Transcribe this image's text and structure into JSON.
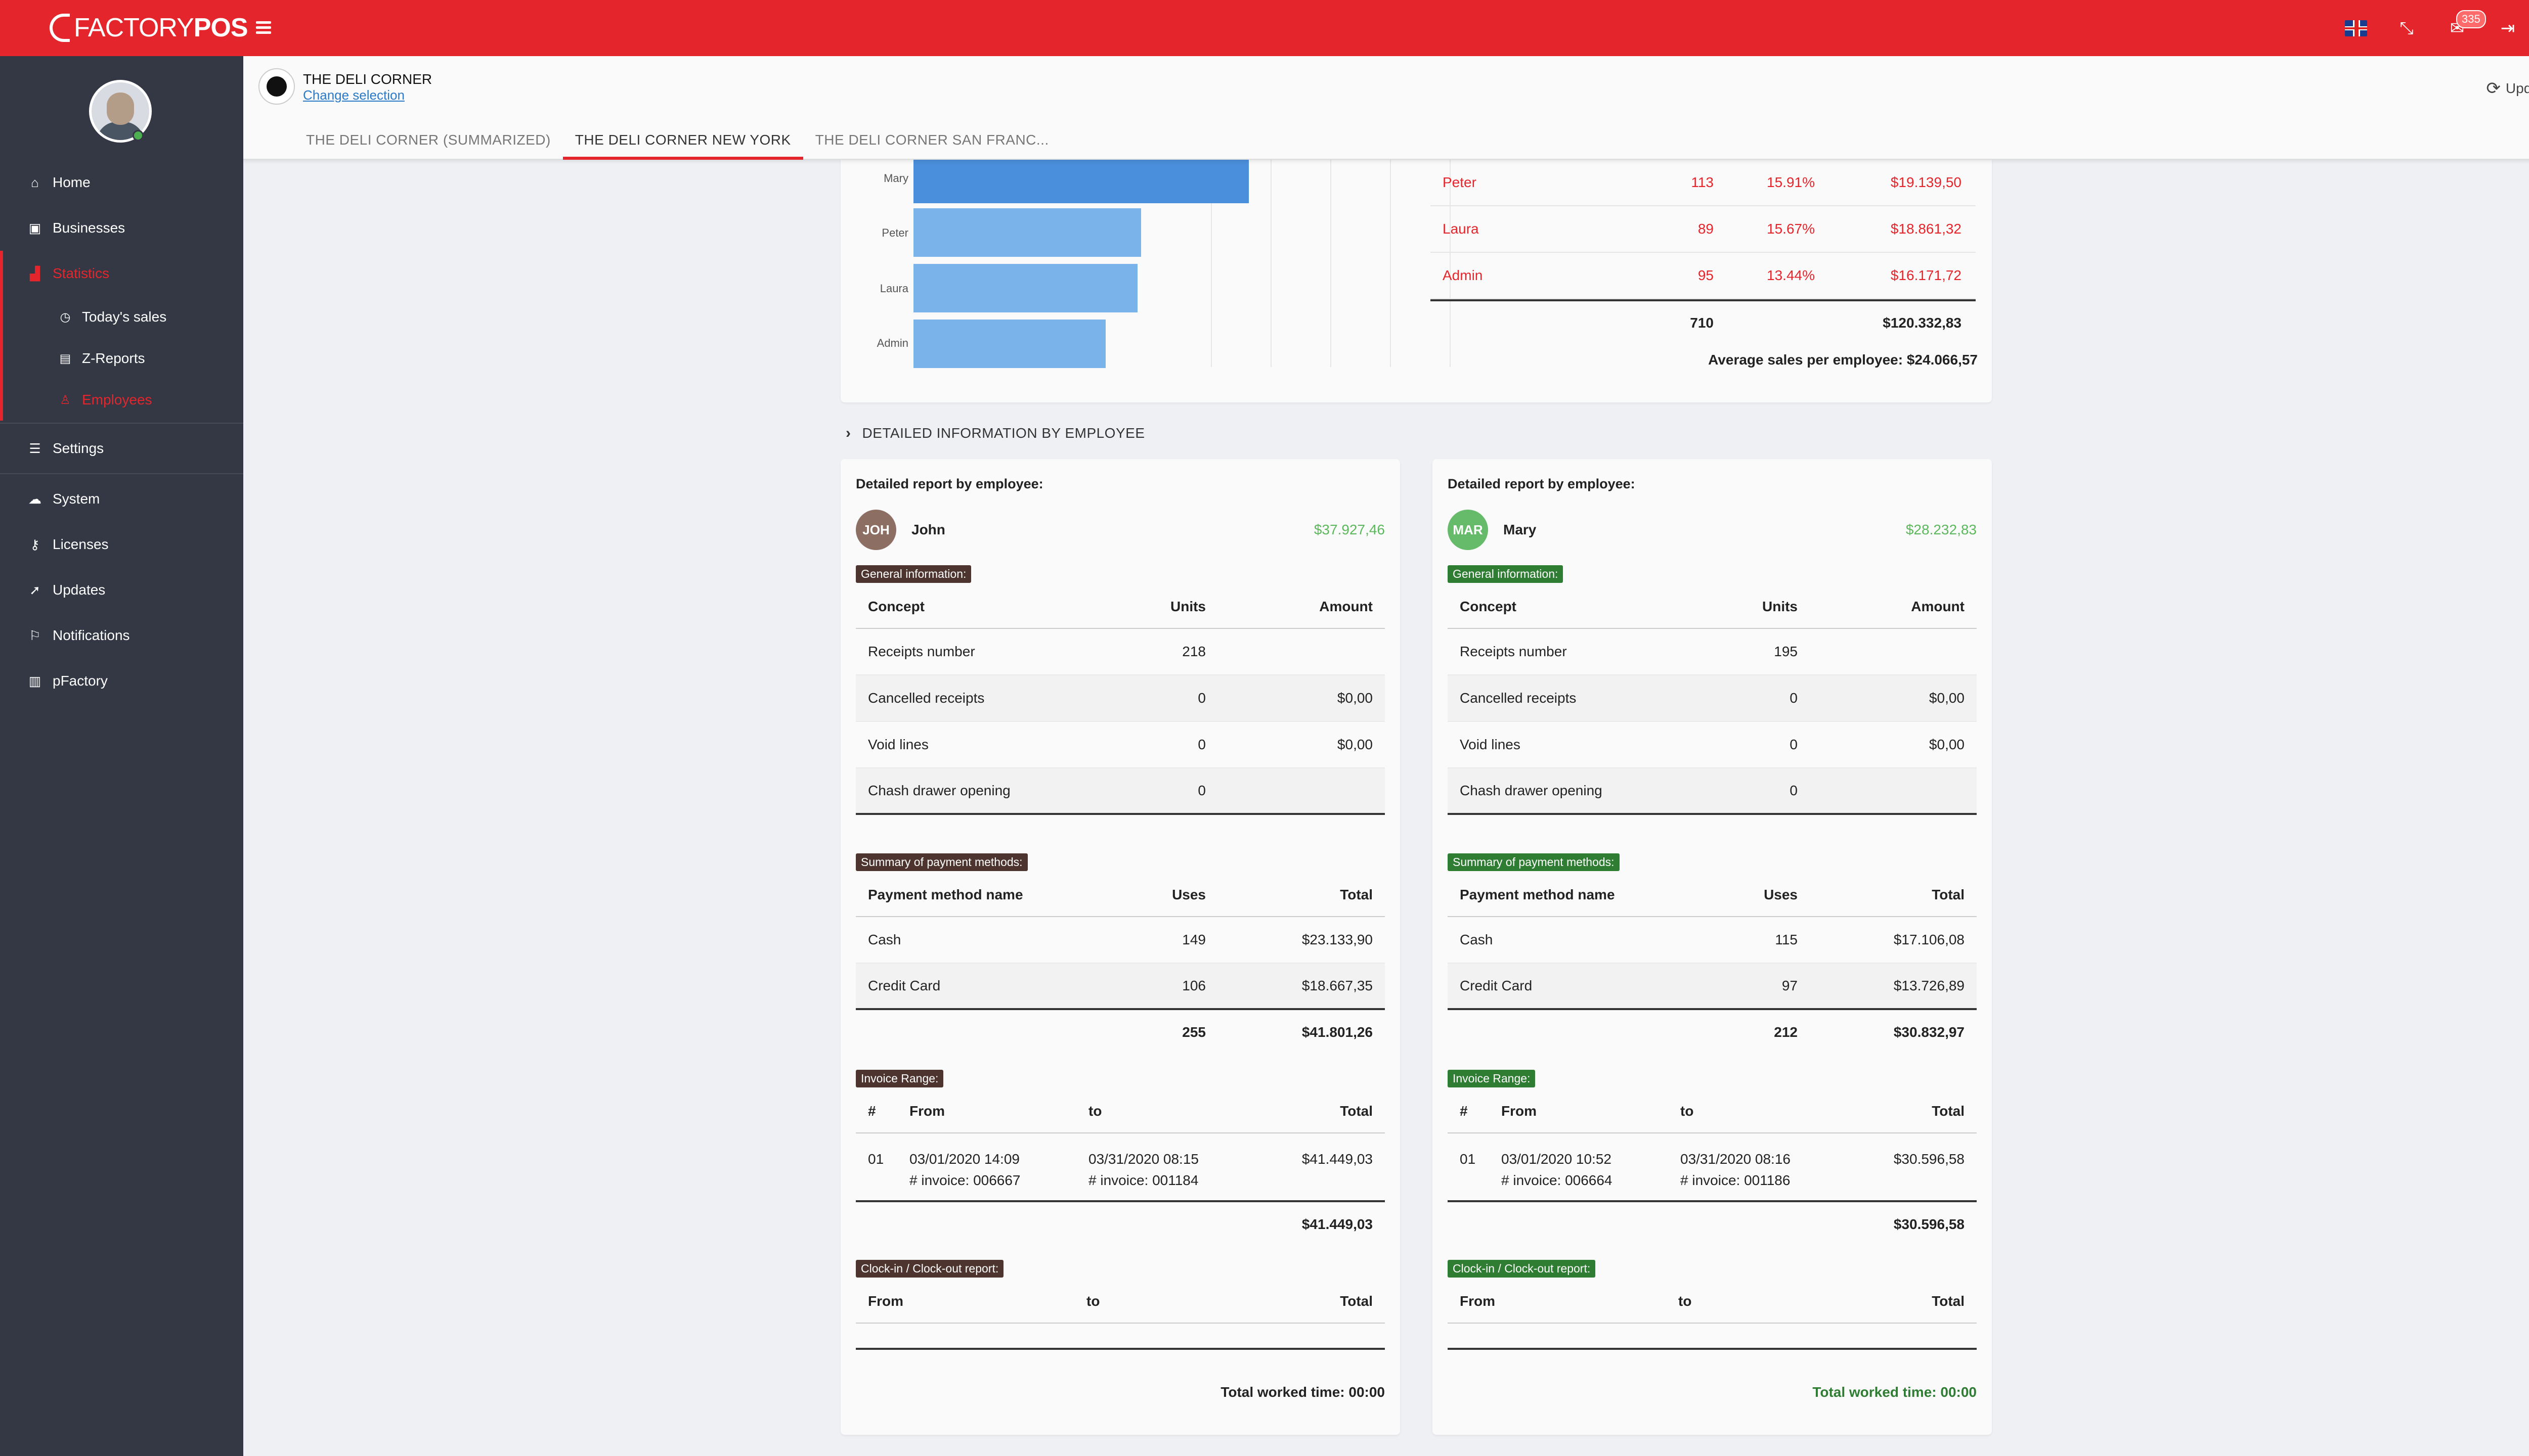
{
  "app": {
    "logo_text_light": "FACTORY",
    "logo_text_bold": "POS",
    "notification_count": "335",
    "accent_color": "#e4262c"
  },
  "topbar": {
    "icons": [
      "menu-icon",
      "uk-flag-icon",
      "fullscreen-icon",
      "mail-icon",
      "logout-icon",
      "business-avatar-icon"
    ]
  },
  "sidebar": {
    "items": [
      {
        "label": "Home",
        "icon": "home-icon"
      },
      {
        "label": "Businesses",
        "icon": "briefcase-icon"
      },
      {
        "label": "Statistics",
        "icon": "chart-icon"
      },
      {
        "label": "Today's sales",
        "icon": "clock-icon"
      },
      {
        "label": "Z-Reports",
        "icon": "calendar-icon"
      },
      {
        "label": "Employees",
        "icon": "user-icon"
      },
      {
        "label": "Settings",
        "icon": "list-icon"
      },
      {
        "label": "System",
        "icon": "cloud-icon"
      },
      {
        "label": "Licenses",
        "icon": "key-icon"
      },
      {
        "label": "Updates",
        "icon": "rocket-icon"
      },
      {
        "label": "Notifications",
        "icon": "bell-icon"
      },
      {
        "label": "pFactory",
        "icon": "bar-chart-icon"
      }
    ]
  },
  "header": {
    "business_name": "THE DELI CORNER",
    "change_selection": "Change selection",
    "update_all": "Update all",
    "tabs": [
      "THE DELI CORNER (SUMMARIZED)",
      "THE DELI CORNER NEW YORK",
      "THE DELI CORNER SAN FRANC..."
    ]
  },
  "chart_data": {
    "type": "bar",
    "orientation": "horizontal",
    "categories": [
      "Mary",
      "Peter",
      "Laura",
      "Admin"
    ],
    "values": [
      28232.83,
      19139.5,
      18861.32,
      16171.72
    ],
    "xlim": [
      0,
      40000
    ]
  },
  "employee_summary": {
    "rows": [
      {
        "name": "Peter",
        "units": "113",
        "percent": "15.91%",
        "amount": "$19.139,50"
      },
      {
        "name": "Laura",
        "units": "89",
        "percent": "15.67%",
        "amount": "$18.861,32"
      },
      {
        "name": "Admin",
        "units": "95",
        "percent": "13.44%",
        "amount": "$16.171,72"
      }
    ],
    "total_units": "710",
    "total_amount": "$120.332,83",
    "average": "Average sales per employee: $24.066,57"
  },
  "section_title": "DETAILED INFORMATION BY EMPLOYEE",
  "cards": [
    {
      "title": "Detailed report by employee:",
      "initials": "JOH",
      "name": "John",
      "amount": "$37.927,46",
      "general_chip": "General information:",
      "general_headers": [
        "Concept",
        "Units",
        "Amount"
      ],
      "general_rows": [
        {
          "concept": "Receipts number",
          "units": "218",
          "amount": ""
        },
        {
          "concept": "Cancelled receipts",
          "units": "0",
          "amount": "$0,00"
        },
        {
          "concept": "Void lines",
          "units": "0",
          "amount": "$0,00"
        },
        {
          "concept": "Chash drawer opening",
          "units": "0",
          "amount": ""
        }
      ],
      "payment_chip": "Summary of payment methods:",
      "payment_headers": [
        "Payment method name",
        "Uses",
        "Total"
      ],
      "payment_rows": [
        {
          "name": "Cash",
          "uses": "149",
          "total": "$23.133,90"
        },
        {
          "name": "Credit Card",
          "uses": "106",
          "total": "$18.667,35"
        }
      ],
      "payment_total_uses": "255",
      "payment_total": "$41.801,26",
      "invoice_chip": "Invoice Range:",
      "invoice_headers": [
        "#",
        "From",
        "to",
        "Total"
      ],
      "invoice_row": {
        "num": "01",
        "from_date": "03/01/2020 14:09",
        "from_inv": "# invoice: 006667",
        "to_date": "03/31/2020 08:15",
        "to_inv": "# invoice: 001184",
        "total": "$41.449,03"
      },
      "invoice_total": "$41.449,03",
      "clock_chip": "Clock-in / Clock-out report:",
      "clock_headers": [
        "From",
        "to",
        "Total"
      ],
      "worked_time": "Total worked time: 00:00"
    },
    {
      "title": "Detailed report by employee:",
      "initials": "MAR",
      "name": "Mary",
      "amount": "$28.232,83",
      "general_chip": "General information:",
      "general_headers": [
        "Concept",
        "Units",
        "Amount"
      ],
      "general_rows": [
        {
          "concept": "Receipts number",
          "units": "195",
          "amount": ""
        },
        {
          "concept": "Cancelled receipts",
          "units": "0",
          "amount": "$0,00"
        },
        {
          "concept": "Void lines",
          "units": "0",
          "amount": "$0,00"
        },
        {
          "concept": "Chash drawer opening",
          "units": "0",
          "amount": ""
        }
      ],
      "payment_chip": "Summary of payment methods:",
      "payment_headers": [
        "Payment method name",
        "Uses",
        "Total"
      ],
      "payment_rows": [
        {
          "name": "Cash",
          "uses": "115",
          "total": "$17.106,08"
        },
        {
          "name": "Credit Card",
          "uses": "97",
          "total": "$13.726,89"
        }
      ],
      "payment_total_uses": "212",
      "payment_total": "$30.832,97",
      "invoice_chip": "Invoice Range:",
      "invoice_headers": [
        "#",
        "From",
        "to",
        "Total"
      ],
      "invoice_row": {
        "num": "01",
        "from_date": "03/01/2020 10:52",
        "from_inv": "# invoice: 006664",
        "to_date": "03/31/2020 08:16",
        "to_inv": "# invoice: 001186",
        "total": "$30.596,58"
      },
      "invoice_total": "$30.596,58",
      "clock_chip": "Clock-in / Clock-out report:",
      "clock_headers": [
        "From",
        "to",
        "Total"
      ],
      "worked_time": "Total worked time: 00:00"
    }
  ]
}
